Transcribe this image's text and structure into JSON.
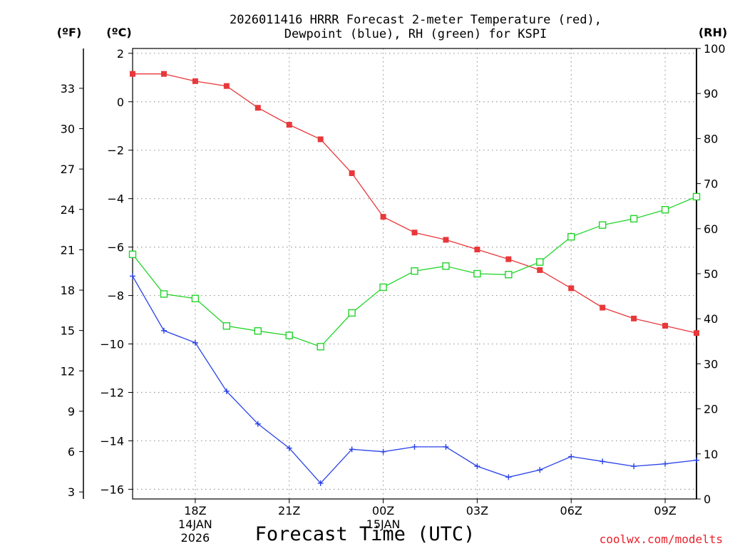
{
  "chart_data": {
    "type": "line",
    "title_lines": [
      "2026011416 HRRR Forecast 2-meter Temperature (red),",
      "Dewpoint (blue), RH (green) for KSPI"
    ],
    "xlabel": "Forecast Time (UTC)",
    "credit": "coolwx.com/modelts",
    "unit_labels": {
      "fahrenheit": "(ºF)",
      "celsius": "(ºC)",
      "rh": "(RH)"
    },
    "x_hours": [
      16,
      17,
      18,
      19,
      20,
      21,
      22,
      23,
      24,
      25,
      26,
      27,
      28,
      29,
      30,
      31,
      32,
      33,
      34
    ],
    "xlim": [
      16,
      34
    ],
    "x_ticks": [
      {
        "hour": 18,
        "label": "18Z",
        "sub": [
          "14JAN",
          "2026"
        ]
      },
      {
        "hour": 21,
        "label": "21Z",
        "sub": []
      },
      {
        "hour": 24,
        "label": "00Z",
        "sub": [
          "15JAN"
        ]
      },
      {
        "hour": 27,
        "label": "03Z",
        "sub": []
      },
      {
        "hour": 30,
        "label": "06Z",
        "sub": []
      },
      {
        "hour": 33,
        "label": "09Z",
        "sub": []
      }
    ],
    "celsius_axis": {
      "min": -16.4,
      "max": 2.2,
      "ticks": [
        "2",
        "0",
        "−2",
        "−4",
        "−6",
        "−8",
        "−10",
        "−12",
        "−14",
        "−16"
      ],
      "tick_values": [
        2,
        0,
        -2,
        -4,
        -6,
        -8,
        -10,
        -12,
        -14,
        -16
      ]
    },
    "fahrenheit_axis": {
      "ticks": [
        "33",
        "30",
        "27",
        "24",
        "21",
        "18",
        "15",
        "12",
        "9",
        "6",
        "3"
      ],
      "tick_values": [
        33,
        30,
        27,
        24,
        21,
        18,
        15,
        12,
        9,
        6,
        3
      ]
    },
    "rh_axis": {
      "min": 0,
      "max": 100,
      "ticks": [
        "100",
        "90",
        "80",
        "70",
        "60",
        "50",
        "40",
        "30",
        "20",
        "10",
        "0"
      ],
      "tick_values": [
        100,
        90,
        80,
        70,
        60,
        50,
        40,
        30,
        20,
        10,
        0
      ]
    },
    "series": [
      {
        "name": "Temperature",
        "unit": "C",
        "color": "#e8383a",
        "marker": "filled-square",
        "values": [
          1.15,
          1.15,
          0.85,
          0.65,
          -0.25,
          -0.95,
          -1.55,
          -2.95,
          -4.75,
          -5.4,
          -5.7,
          -6.1,
          -6.5,
          -6.95,
          -7.7,
          -8.5,
          -8.95,
          -9.25,
          -9.55
        ]
      },
      {
        "name": "Dewpoint",
        "unit": "C",
        "color": "#2842e8",
        "marker": "plus",
        "values": [
          -7.2,
          -9.45,
          -9.95,
          -11.95,
          -13.3,
          -14.3,
          -15.75,
          -14.35,
          -14.45,
          -14.25,
          -14.25,
          -15.05,
          -15.5,
          -15.2,
          -14.65,
          -14.85,
          -15.05,
          -14.95,
          -14.8
        ]
      },
      {
        "name": "RH",
        "unit": "%",
        "color": "#22d42a",
        "marker": "open-square",
        "values": [
          54.3,
          45.5,
          44.5,
          38.4,
          37.3,
          36.3,
          33.8,
          41.3,
          47.0,
          50.6,
          51.7,
          50.0,
          49.8,
          52.6,
          58.2,
          60.8,
          62.2,
          64.2,
          67.1
        ]
      }
    ]
  }
}
